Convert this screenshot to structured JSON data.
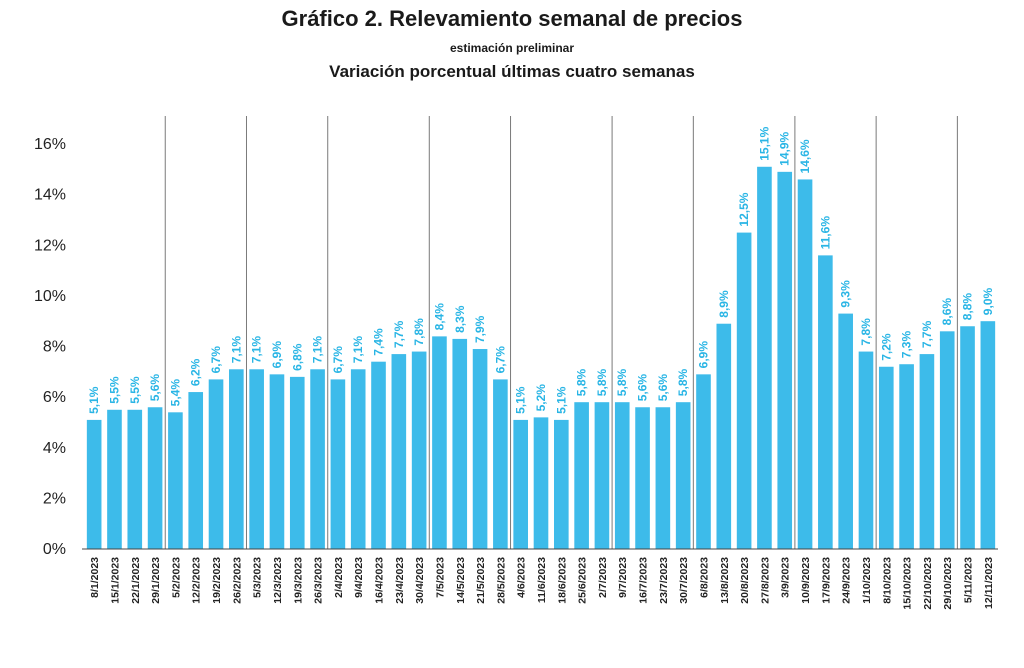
{
  "title": "Gráfico 2. Relevamiento semanal de precios",
  "subtitle": "estimación preliminar",
  "subtitle2": "Variación porcentual últimas cuatro semanas",
  "colors": {
    "bar": "#3dbbea",
    "label": "#29b5e5",
    "separator": "#7a7a7a"
  },
  "chart_data": {
    "type": "bar",
    "categories": [
      "8/1/2023",
      "15/1/2023",
      "22/1/2023",
      "29/1/2023",
      "5/2/2023",
      "12/2/2023",
      "19/2/2023",
      "26/2/2023",
      "5/3/2023",
      "12/3/2023",
      "19/3/2023",
      "26/3/2023",
      "2/4/2023",
      "9/4/2023",
      "16/4/2023",
      "23/4/2023",
      "30/4/2023",
      "7/5/2023",
      "14/5/2023",
      "21/5/2023",
      "28/5/2023",
      "4/6/2023",
      "11/6/2023",
      "18/6/2023",
      "25/6/2023",
      "2/7/2023",
      "9/7/2023",
      "16/7/2023",
      "23/7/2023",
      "30/7/2023",
      "6/8/2023",
      "13/8/2023",
      "20/8/2023",
      "27/8/2023",
      "3/9/2023",
      "10/9/2023",
      "17/9/2023",
      "24/9/2023",
      "1/10/2023",
      "8/10/2023",
      "15/10/2023",
      "22/10/2023",
      "29/10/2023",
      "5/11/2023",
      "12/11/2023"
    ],
    "values": [
      5.1,
      5.5,
      5.5,
      5.6,
      5.4,
      6.2,
      6.7,
      7.1,
      7.1,
      6.9,
      6.8,
      7.1,
      6.7,
      7.1,
      7.4,
      7.7,
      7.8,
      8.4,
      8.3,
      7.9,
      6.7,
      5.1,
      5.2,
      5.1,
      5.8,
      5.8,
      5.8,
      5.6,
      5.6,
      5.8,
      6.9,
      8.9,
      12.5,
      15.1,
      14.9,
      14.6,
      11.6,
      9.3,
      7.8,
      7.2,
      7.3,
      7.7,
      8.6,
      8.8,
      9.0
    ],
    "data_labels": [
      "5,1%",
      "5,5%",
      "5,5%",
      "5,6%",
      "5,4%",
      "6,2%",
      "6,7%",
      "7,1%",
      "7,1%",
      "6,9%",
      "6,8%",
      "7,1%",
      "6,7%",
      "7,1%",
      "7,4%",
      "7,7%",
      "7,8%",
      "8,4%",
      "8,3%",
      "7,9%",
      "6,7%",
      "5,1%",
      "5,2%",
      "5,1%",
      "5,8%",
      "5,8%",
      "5,8%",
      "5,6%",
      "5,6%",
      "5,8%",
      "6,9%",
      "8,9%",
      "12,5%",
      "15,1%",
      "14,9%",
      "14,6%",
      "11,6%",
      "9,3%",
      "7,8%",
      "7,2%",
      "7,3%",
      "7,7%",
      "8,6%",
      "8,8%",
      "9,0%"
    ],
    "yticks": [
      "0%",
      "2%",
      "4%",
      "6%",
      "8%",
      "10%",
      "12%",
      "14%",
      "16%"
    ],
    "ylim": [
      0,
      16.5
    ],
    "month_separators_after_index": [
      3,
      7,
      11,
      16,
      20,
      25,
      29,
      34,
      38,
      42
    ],
    "grid": false,
    "legend": "none"
  }
}
